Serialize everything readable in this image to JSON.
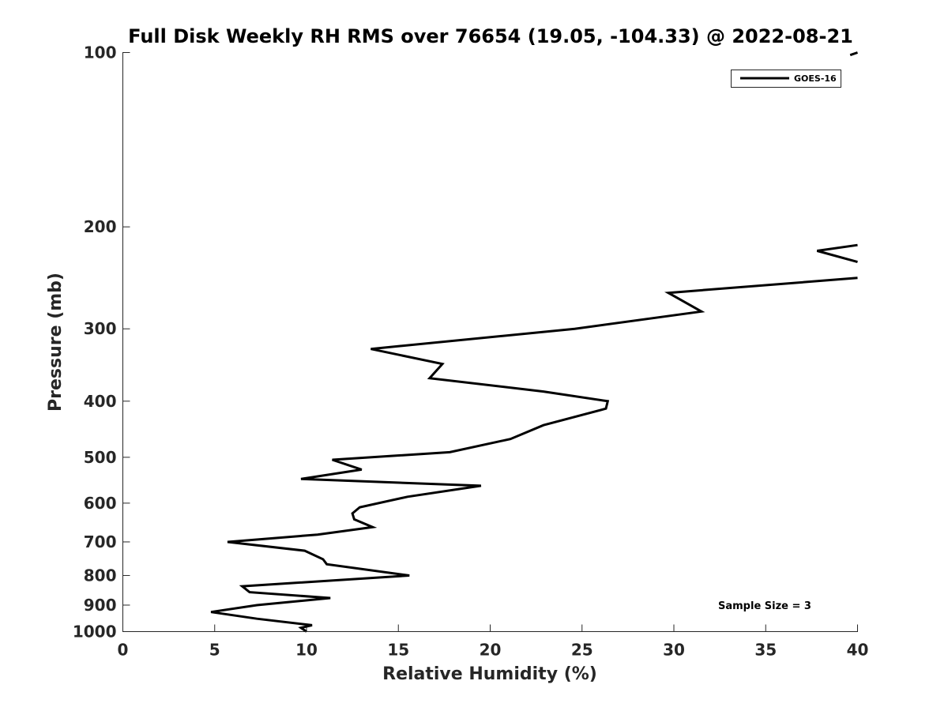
{
  "chart_data": {
    "type": "line",
    "title": "Full Disk Weekly RH RMS over 76654 (19.05, -104.33) @ 2022-08-21",
    "xlabel": "Relative Humidity (%)",
    "ylabel": "Pressure (mb)",
    "xlim": [
      0,
      40
    ],
    "ylim": [
      100,
      1000
    ],
    "y_scale": "log",
    "y_reversed": true,
    "x_ticks": [
      0,
      5,
      10,
      15,
      20,
      25,
      30,
      35,
      40
    ],
    "x_tick_labels": [
      "0",
      "5",
      "10",
      "15",
      "20",
      "25",
      "30",
      "35",
      "40"
    ],
    "y_ticks": [
      100,
      200,
      300,
      400,
      500,
      600,
      700,
      800,
      900,
      1000
    ],
    "y_tick_labels": [
      "100",
      "200",
      "300",
      "400",
      "500",
      "600",
      "700",
      "800",
      "900",
      "1000"
    ],
    "grid": false,
    "legend_position": "top-right",
    "series": [
      {
        "name": "GOES-16",
        "color": "#000000",
        "segments": [
          [
            {
              "x": 40.0,
              "y": 100
            },
            {
              "x": 39.6,
              "y": 101
            }
          ],
          [
            {
              "x": 40.0,
              "y": 215
            },
            {
              "x": 37.8,
              "y": 220
            },
            {
              "x": 40.0,
              "y": 230
            }
          ],
          [
            {
              "x": 40.0,
              "y": 245
            },
            {
              "x": 29.7,
              "y": 260
            },
            {
              "x": 31.5,
              "y": 280
            },
            {
              "x": 24.6,
              "y": 300
            },
            {
              "x": 13.5,
              "y": 325
            },
            {
              "x": 17.4,
              "y": 345
            },
            {
              "x": 16.7,
              "y": 365
            },
            {
              "x": 22.9,
              "y": 385
            },
            {
              "x": 26.4,
              "y": 400
            },
            {
              "x": 26.3,
              "y": 412
            },
            {
              "x": 22.9,
              "y": 440
            },
            {
              "x": 21.1,
              "y": 465
            },
            {
              "x": 17.8,
              "y": 490
            },
            {
              "x": 11.4,
              "y": 505
            },
            {
              "x": 13.0,
              "y": 525
            },
            {
              "x": 9.7,
              "y": 545
            },
            {
              "x": 19.5,
              "y": 560
            },
            {
              "x": 15.5,
              "y": 585
            },
            {
              "x": 12.9,
              "y": 610
            },
            {
              "x": 12.5,
              "y": 625
            },
            {
              "x": 12.6,
              "y": 640
            },
            {
              "x": 13.6,
              "y": 660
            },
            {
              "x": 10.6,
              "y": 680
            },
            {
              "x": 5.7,
              "y": 700
            },
            {
              "x": 9.9,
              "y": 725
            },
            {
              "x": 10.9,
              "y": 750
            },
            {
              "x": 11.1,
              "y": 765
            },
            {
              "x": 15.6,
              "y": 800
            },
            {
              "x": 6.5,
              "y": 835
            },
            {
              "x": 6.9,
              "y": 855
            },
            {
              "x": 11.3,
              "y": 875
            },
            {
              "x": 7.3,
              "y": 900
            },
            {
              "x": 4.8,
              "y": 925
            },
            {
              "x": 7.3,
              "y": 950
            },
            {
              "x": 10.3,
              "y": 975
            },
            {
              "x": 9.7,
              "y": 985
            },
            {
              "x": 10.0,
              "y": 1000
            }
          ]
        ]
      }
    ],
    "annotations": [
      {
        "text": "Sample Size = 3"
      }
    ]
  }
}
